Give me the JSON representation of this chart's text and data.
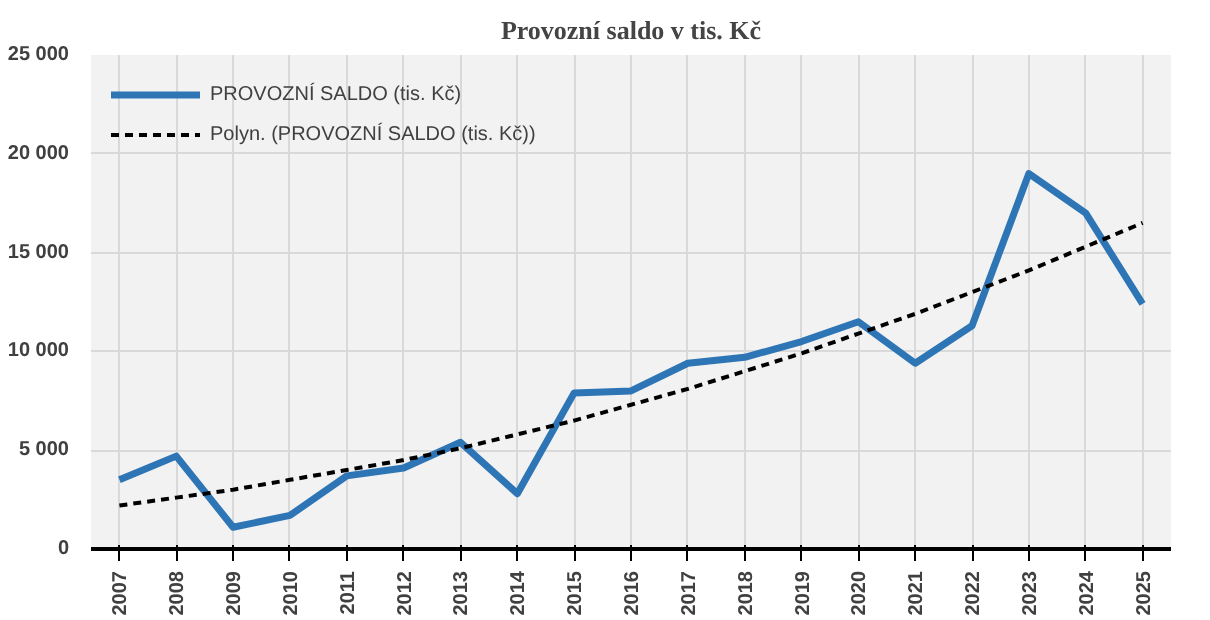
{
  "chart_data": {
    "type": "line",
    "title": "Provozní saldo v tis. Kč",
    "categories": [
      "2007",
      "2008",
      "2009",
      "2010",
      "2011",
      "2012",
      "2013",
      "2014",
      "2015",
      "2016",
      "2017",
      "2018",
      "2019",
      "2020",
      "2021",
      "2022",
      "2023",
      "2024",
      "2025"
    ],
    "series": [
      {
        "name": "PROVOZNÍ SALDO (tis. Kč)",
        "color": "#2e75b6",
        "line_style": "solid",
        "values": [
          3500,
          4700,
          1100,
          1700,
          3700,
          4100,
          5400,
          2800,
          7900,
          8000,
          9400,
          9700,
          10500,
          11500,
          9400,
          11300,
          19000,
          17000,
          12400
        ]
      },
      {
        "name": "Polyn. (PROVOZNÍ SALDO (tis. Kč))",
        "color": "#000000",
        "line_style": "dashed",
        "values": [
          2200,
          2600,
          3000,
          3500,
          4000,
          4500,
          5100,
          5800,
          6500,
          7300,
          8100,
          9000,
          9900,
          10900,
          11900,
          13000,
          14100,
          15300,
          16500
        ]
      }
    ],
    "ylim": [
      0,
      25000
    ],
    "yticks": [
      {
        "value": 0,
        "label": "0"
      },
      {
        "value": 5000,
        "label": "5 000"
      },
      {
        "value": 10000,
        "label": "10 000"
      },
      {
        "value": 15000,
        "label": "15 000"
      },
      {
        "value": 20000,
        "label": "20 000"
      },
      {
        "value": 25000,
        "label": "25 000"
      }
    ],
    "grid": true,
    "legend": "top left"
  }
}
